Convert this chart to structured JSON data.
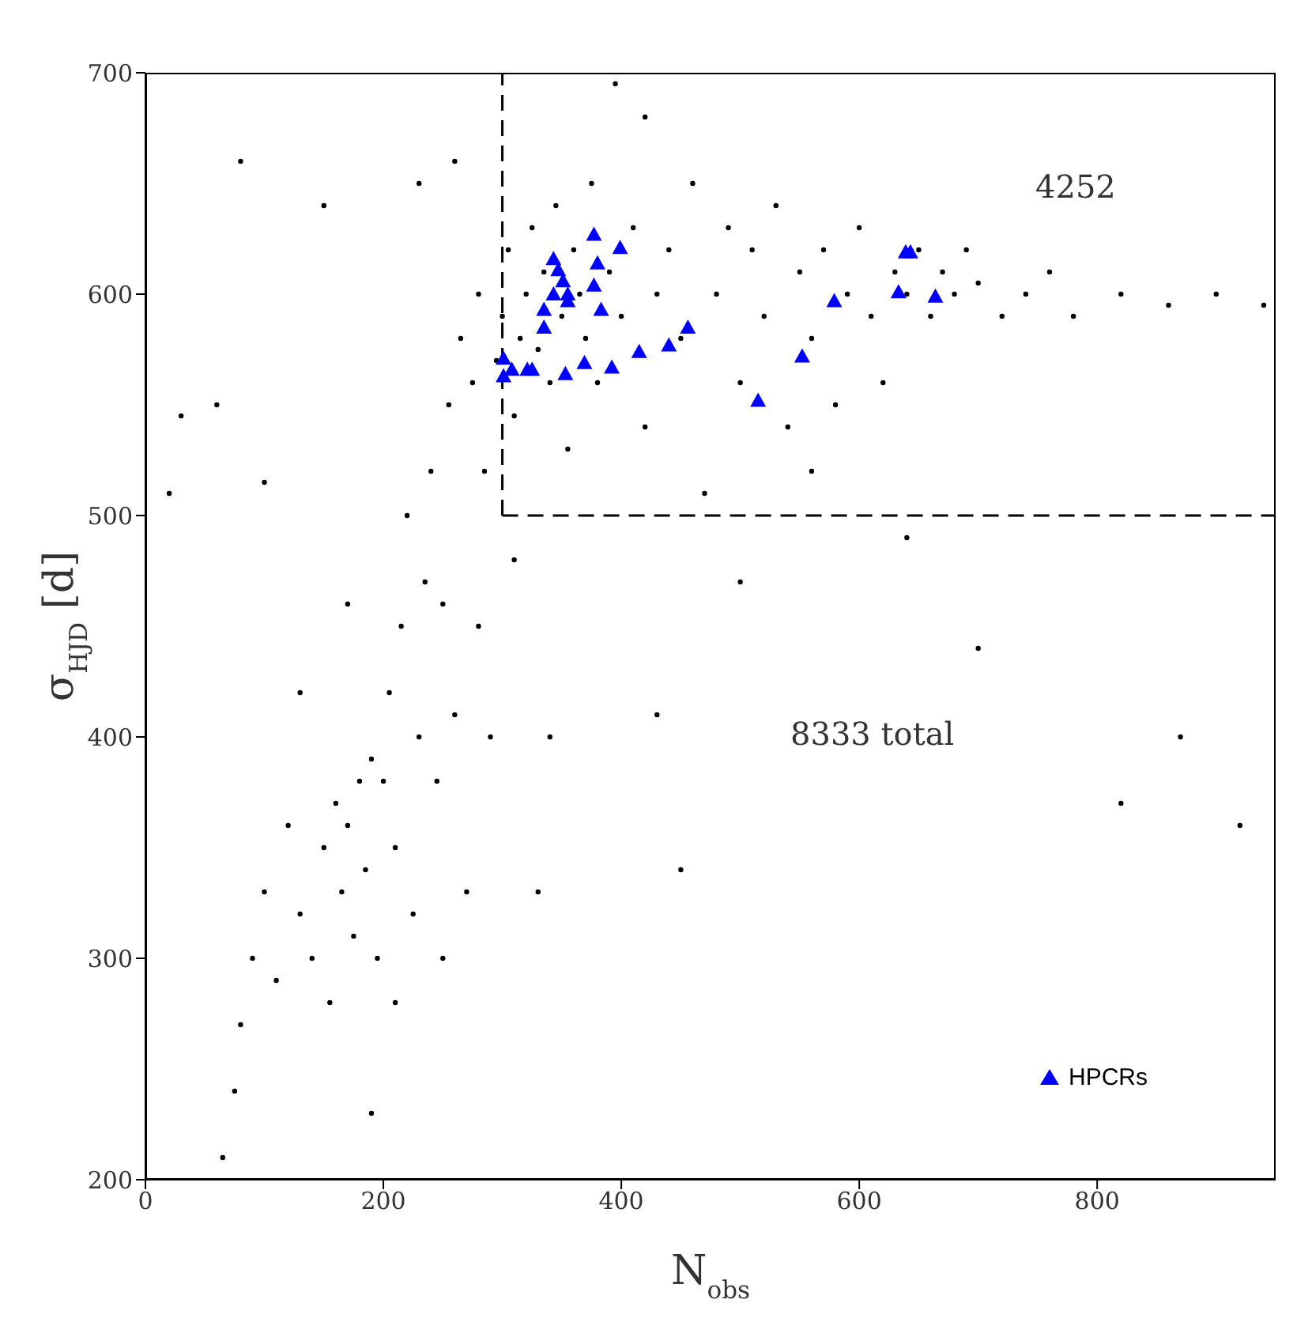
{
  "chart_data": {
    "type": "scatter",
    "xlabel": "N$_{obs}$",
    "ylabel": "σ$_{HJD}$ [d]",
    "xlim": [
      0,
      950
    ],
    "ylim": [
      200,
      700
    ],
    "xticks": [
      0,
      200,
      400,
      600,
      800
    ],
    "yticks": [
      200,
      300,
      400,
      500,
      600,
      700
    ],
    "grid": false,
    "legend": "bottom right",
    "annotations": [
      "4252",
      "8333 total"
    ],
    "ref_lines": [
      {
        "axis": "x",
        "value": 300,
        "line_style": "dashed",
        "color": "#000000"
      },
      {
        "axis": "y",
        "value": 500,
        "line_style": "dashed",
        "color": "#000000"
      }
    ],
    "series": [
      {
        "color": "#000000",
        "marker": "circle",
        "x": [
          65,
          75,
          80,
          90,
          100,
          110,
          120,
          130,
          140,
          150,
          155,
          160,
          165,
          170,
          175,
          180,
          185,
          190,
          195,
          200,
          205,
          210,
          215,
          220,
          225,
          230,
          235,
          240,
          245,
          250,
          255,
          260,
          265,
          270,
          275,
          280,
          285,
          290,
          295,
          300,
          305,
          310,
          315,
          320,
          325,
          330,
          335,
          340,
          345,
          350,
          355,
          360,
          365,
          370,
          375,
          380,
          390,
          400,
          410,
          420,
          430,
          440,
          450,
          460,
          470,
          480,
          490,
          500,
          510,
          520,
          530,
          540,
          550,
          560,
          570,
          580,
          590,
          600,
          610,
          620,
          630,
          640,
          650,
          660,
          670,
          680,
          690,
          700,
          720,
          740,
          760,
          780,
          820,
          860,
          900,
          940,
          60,
          20,
          30,
          100,
          80,
          150,
          230,
          260,
          420,
          500,
          560,
          640,
          700,
          820,
          870,
          920,
          450,
          430,
          340,
          330,
          310,
          210,
          190,
          130,
          170,
          250,
          280,
          395
        ],
        "values": [
          210,
          240,
          270,
          300,
          330,
          290,
          360,
          320,
          300,
          350,
          280,
          370,
          330,
          360,
          310,
          380,
          340,
          390,
          300,
          380,
          420,
          350,
          450,
          500,
          320,
          400,
          470,
          520,
          380,
          300,
          550,
          410,
          580,
          330,
          560,
          600,
          520,
          400,
          570,
          590,
          620,
          545,
          580,
          600,
          630,
          575,
          610,
          560,
          640,
          590,
          530,
          620,
          600,
          580,
          650,
          560,
          610,
          590,
          630,
          540,
          600,
          620,
          580,
          650,
          510,
          600,
          630,
          560,
          620,
          590,
          640,
          540,
          610,
          580,
          620,
          550,
          600,
          630,
          590,
          560,
          610,
          600,
          620,
          590,
          610,
          600,
          620,
          605,
          590,
          600,
          610,
          590,
          600,
          595,
          600,
          595,
          550,
          510,
          545,
          515,
          660,
          640,
          650,
          660,
          680,
          470,
          520,
          490,
          440,
          370,
          400,
          360,
          340,
          410,
          400,
          330,
          480,
          280,
          230,
          420,
          460,
          460,
          450,
          695
        ]
      },
      {
        "name": "HPCRs",
        "color": "#0000ff",
        "marker": "triangle",
        "x": [
          377,
          399,
          343,
          380,
          347,
          351,
          377,
          343,
          355,
          355,
          383,
          335,
          335,
          456,
          440,
          415,
          301,
          369,
          308,
          321,
          325,
          392,
          353,
          301,
          639,
          643,
          579,
          633,
          664,
          552,
          515
        ],
        "values": [
          627,
          621,
          616,
          614,
          611,
          606,
          604,
          600,
          600,
          597,
          593,
          593,
          585,
          585,
          577,
          574,
          571,
          569,
          566,
          566,
          566,
          567,
          564,
          563,
          619,
          619,
          597,
          601,
          599,
          572,
          552
        ]
      }
    ]
  }
}
